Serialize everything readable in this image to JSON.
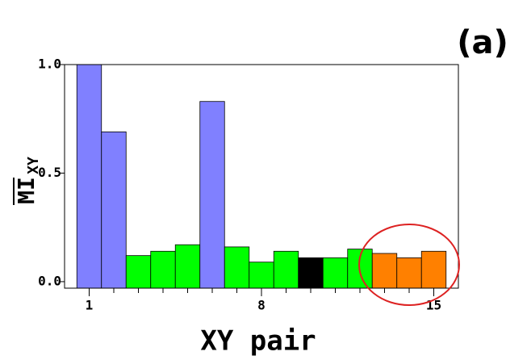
{
  "chart_data": {
    "type": "bar",
    "panel_label": "(a)",
    "xlabel": "XY pair",
    "ylabel": "MI",
    "ylabel_sub": "XY",
    "x": [
      1,
      2,
      3,
      4,
      5,
      6,
      7,
      8,
      9,
      10,
      11,
      12,
      13,
      14,
      15
    ],
    "values": [
      1.0,
      0.69,
      0.12,
      0.14,
      0.17,
      0.83,
      0.16,
      0.09,
      0.14,
      0.11,
      0.11,
      0.15,
      0.13,
      0.11,
      0.14
    ],
    "colors": [
      "#8080ff",
      "#8080ff",
      "#00ff00",
      "#00ff00",
      "#00ff00",
      "#8080ff",
      "#00ff00",
      "#00ff00",
      "#00ff00",
      "#000000",
      "#00ff00",
      "#00ff00",
      "#ff8000",
      "#ff8000",
      "#ff8000"
    ],
    "xlim": [
      0,
      16
    ],
    "xticks": [
      1,
      8,
      15
    ],
    "ylim": [
      -0.03,
      1.0
    ],
    "yticks": [
      {
        "value": 0,
        "label": "0.0"
      },
      0.5,
      {
        "value": 1,
        "label": "1.0"
      }
    ]
  }
}
